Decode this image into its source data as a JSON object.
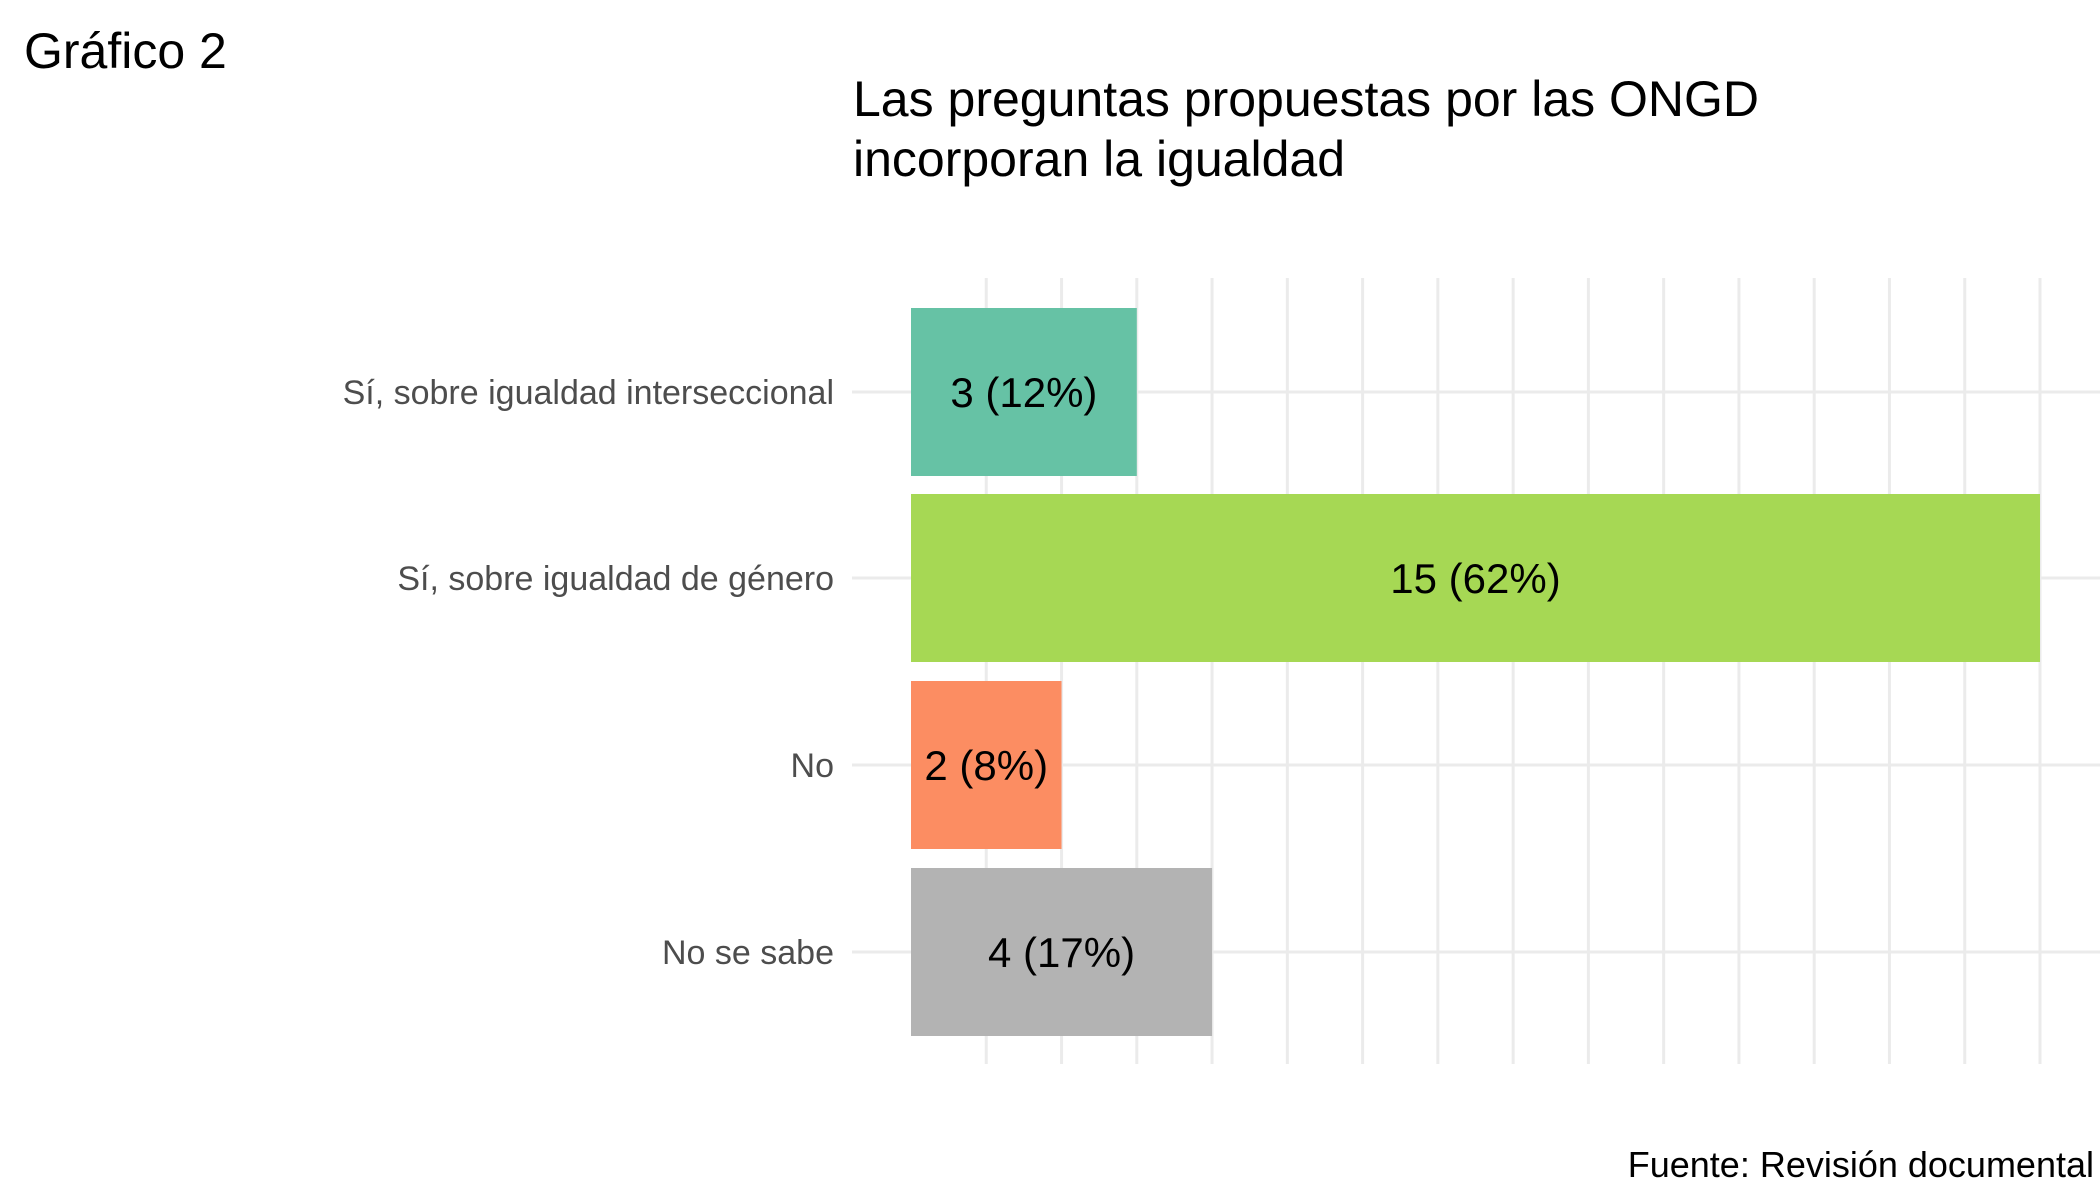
{
  "figure_label": "Gráfico 2",
  "caption": "Fuente: Revisión documental",
  "chart_data": {
    "type": "bar",
    "orientation": "horizontal",
    "title": "Las preguntas propuestas por las ONGD incorporan la igualdad",
    "title_lines": [
      "Las preguntas propuestas por las ONGD",
      "incorporan la igualdad"
    ],
    "xlabel": "",
    "ylabel": "",
    "categories": [
      "Sí, sobre igualdad interseccional",
      "Sí, sobre igualdad de género",
      "No",
      "No se sabe"
    ],
    "values": [
      3,
      15,
      2,
      4
    ],
    "percentages": [
      12,
      62,
      8,
      17
    ],
    "data_labels": [
      "3 (12%)",
      "15 (62%)",
      "2 (8%)",
      "4 (17%)"
    ],
    "colors": [
      "#66c2a5",
      "#a6d854",
      "#fc8d62",
      "#b3b3b3"
    ],
    "xlim": [
      0,
      15
    ],
    "grid": true,
    "legend": "none"
  }
}
